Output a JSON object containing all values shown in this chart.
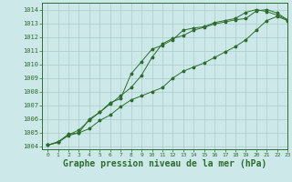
{
  "background_color": "#cce8e8",
  "grid_color": "#aacccc",
  "line_color": "#2d6e2d",
  "xlabel": "Graphe pression niveau de la mer (hPa)",
  "xlabel_fontsize": 7,
  "xlim": [
    -0.5,
    23
  ],
  "ylim": [
    1003.8,
    1014.5
  ],
  "yticks": [
    1004,
    1005,
    1006,
    1007,
    1008,
    1009,
    1010,
    1011,
    1012,
    1013,
    1014
  ],
  "xticks": [
    0,
    1,
    2,
    3,
    4,
    5,
    6,
    7,
    8,
    9,
    10,
    11,
    12,
    13,
    14,
    15,
    16,
    17,
    18,
    19,
    20,
    21,
    22,
    23
  ],
  "line1_x": [
    0,
    1,
    2,
    3,
    4,
    5,
    6,
    7,
    8,
    9,
    10,
    11,
    12,
    13,
    14,
    15,
    16,
    17,
    18,
    19,
    20,
    21,
    22,
    23
  ],
  "line1_y": [
    1004.1,
    1004.3,
    1004.9,
    1005.0,
    1005.3,
    1005.9,
    1006.3,
    1006.9,
    1007.4,
    1007.7,
    1008.0,
    1008.3,
    1009.0,
    1009.5,
    1009.8,
    1010.1,
    1010.5,
    1010.9,
    1011.3,
    1011.8,
    1012.5,
    1013.2,
    1013.5,
    1013.2
  ],
  "line2_x": [
    0,
    1,
    2,
    3,
    4,
    5,
    6,
    7,
    8,
    9,
    10,
    11,
    12,
    13,
    14,
    15,
    16,
    17,
    18,
    19,
    20,
    21,
    22,
    23
  ],
  "line2_y": [
    1004.1,
    1004.3,
    1004.8,
    1005.0,
    1006.0,
    1006.5,
    1007.2,
    1007.5,
    1009.3,
    1010.2,
    1011.1,
    1011.4,
    1011.8,
    1012.5,
    1012.65,
    1012.75,
    1013.05,
    1013.2,
    1013.35,
    1013.8,
    1014.0,
    1013.85,
    1013.6,
    1013.25
  ],
  "line3_x": [
    0,
    1,
    2,
    3,
    4,
    5,
    6,
    7,
    8,
    9,
    10,
    11,
    12,
    13,
    14,
    15,
    16,
    17,
    18,
    19,
    20,
    21,
    22,
    23
  ],
  "line3_y": [
    1004.1,
    1004.35,
    1004.85,
    1005.2,
    1005.9,
    1006.5,
    1007.1,
    1007.7,
    1008.3,
    1009.2,
    1010.5,
    1011.5,
    1011.9,
    1012.1,
    1012.5,
    1012.7,
    1012.95,
    1013.1,
    1013.25,
    1013.35,
    1013.9,
    1014.0,
    1013.75,
    1013.25
  ]
}
